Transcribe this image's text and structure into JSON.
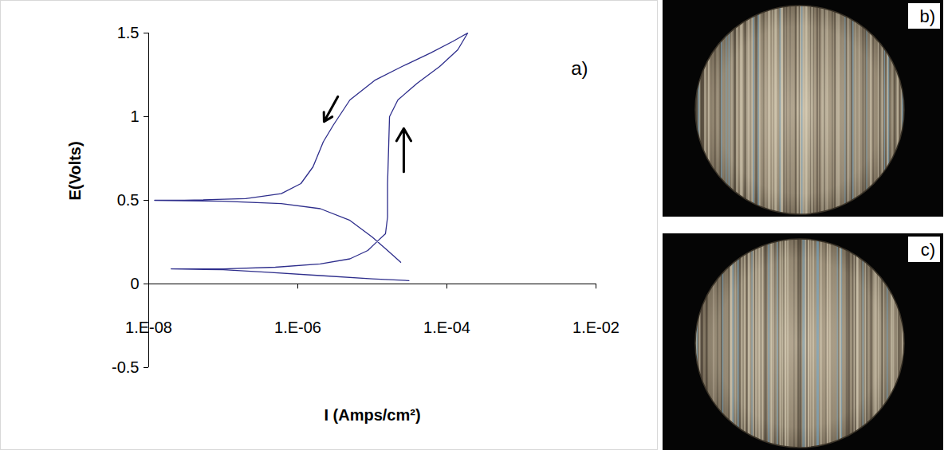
{
  "chart_data": {
    "type": "line",
    "panel_label": "a)",
    "x_label": "I (Amps/cm²)",
    "y_label": "E(Volts)",
    "log": "x",
    "grid": false,
    "xlim": [
      1e-08,
      0.01
    ],
    "xticks": [
      {
        "value": 1e-08,
        "label": "1.E-08"
      },
      {
        "value": 1e-06,
        "label": "1.E-06"
      },
      {
        "value": 0.0001,
        "label": "1.E-04"
      },
      {
        "value": 0.01,
        "label": "1.E-02"
      }
    ],
    "ylim": [
      -0.5,
      1.5
    ],
    "yticks": [
      -0.5,
      0,
      0.5,
      1,
      1.5
    ],
    "x": [
      3.1e-05,
      1e-05,
      2e-06,
      4e-07,
      1e-07,
      2e-08,
      1e-07,
      5e-07,
      2e-06,
      5e-06,
      8.7e-06,
      1.2e-05,
      1.5e-05,
      1.6e-05,
      1.6e-05,
      1.65e-05,
      1.7e-05,
      2.2e-05,
      4e-05,
      8e-05,
      0.00014,
      0.00019,
      0.00012,
      6e-05,
      2.5e-05,
      1.1e-05,
      5e-06,
      3e-06,
      2.2e-06,
      1.6e-06,
      1.1e-06,
      6e-07,
      2e-07,
      3e-08,
      1.2e-08,
      1e-07,
      6e-07,
      2e-06,
      5e-06,
      1e-05,
      1.6e-05,
      2.4e-05
    ],
    "series": [
      {
        "color": "#2e2e8c",
        "line_style": "solid",
        "values": [
          0.02,
          0.03,
          0.05,
          0.07,
          0.085,
          0.09,
          0.09,
          0.1,
          0.12,
          0.15,
          0.2,
          0.26,
          0.3,
          0.4,
          0.6,
          0.8,
          1.0,
          1.1,
          1.2,
          1.3,
          1.4,
          1.5,
          1.45,
          1.38,
          1.3,
          1.22,
          1.1,
          0.95,
          0.85,
          0.7,
          0.6,
          0.54,
          0.51,
          0.5,
          0.5,
          0.495,
          0.48,
          0.45,
          0.38,
          0.28,
          0.2,
          0.13
        ]
      }
    ]
  },
  "photos": [
    {
      "label": "b)"
    },
    {
      "label": "c)"
    }
  ]
}
